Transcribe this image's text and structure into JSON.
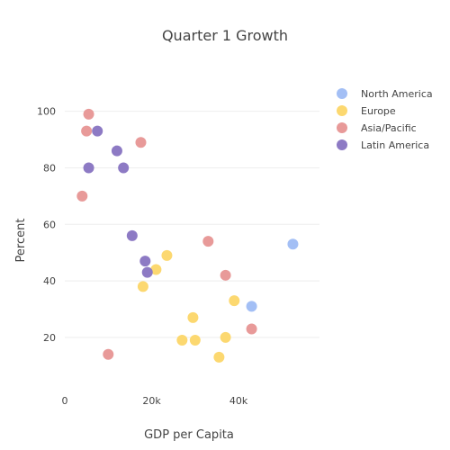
{
  "chart_data": {
    "type": "scatter",
    "title": "Quarter 1 Growth",
    "xlabel": "GDP per Capita",
    "ylabel": "Percent",
    "xlim": [
      0,
      58000
    ],
    "ylim": [
      5,
      112
    ],
    "x_ticks": [
      {
        "value": 0,
        "label": "0"
      },
      {
        "value": 20000,
        "label": "20k"
      },
      {
        "value": 40000,
        "label": "40k"
      }
    ],
    "y_ticks": [
      {
        "value": 20,
        "label": "20"
      },
      {
        "value": 40,
        "label": "40"
      },
      {
        "value": 60,
        "label": "60"
      },
      {
        "value": 80,
        "label": "80"
      },
      {
        "value": 100,
        "label": "100"
      }
    ],
    "grid": "horizontal",
    "legend_position": "top-right",
    "series": [
      {
        "name": "North America",
        "color": "#a3bff5",
        "points": [
          [
            52500,
            53
          ],
          [
            43000,
            31
          ]
        ]
      },
      {
        "name": "Europe",
        "color": "#fcd870",
        "points": [
          [
            23500,
            49
          ],
          [
            21000,
            44
          ],
          [
            18000,
            38
          ],
          [
            39000,
            33
          ],
          [
            29500,
            27
          ],
          [
            37000,
            20
          ],
          [
            27000,
            19
          ],
          [
            30000,
            19
          ],
          [
            35500,
            13
          ]
        ]
      },
      {
        "name": "Asia/Pacific",
        "color": "#e89a99",
        "points": [
          [
            5500,
            99
          ],
          [
            5000,
            93
          ],
          [
            17500,
            89
          ],
          [
            4000,
            70
          ],
          [
            33000,
            54
          ],
          [
            37000,
            42
          ],
          [
            43000,
            23
          ],
          [
            10000,
            14
          ]
        ]
      },
      {
        "name": "Latin America",
        "color": "#8d7ac4",
        "points": [
          [
            7500,
            93
          ],
          [
            12000,
            86
          ],
          [
            5500,
            80
          ],
          [
            13500,
            80
          ],
          [
            15500,
            56
          ],
          [
            18500,
            47
          ],
          [
            19000,
            43
          ]
        ]
      }
    ]
  }
}
